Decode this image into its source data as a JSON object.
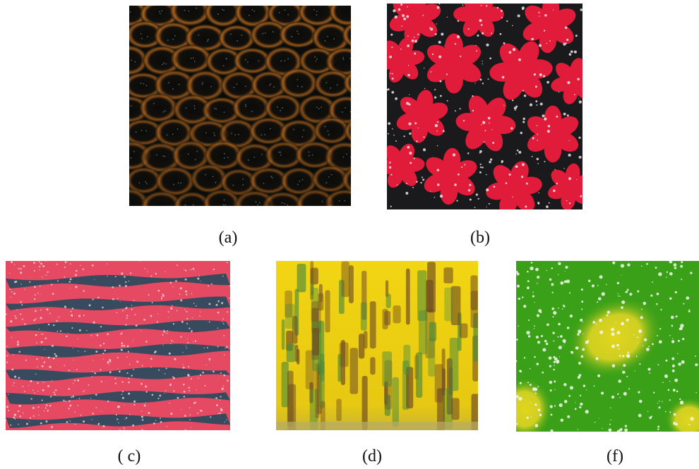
{
  "figure": {
    "captions": {
      "a": "(a)",
      "b": "(b)",
      "c": "( c)",
      "d": "(d)",
      "f": "(f)"
    },
    "colors": {
      "background": "#ffffff",
      "panel_a_base": "#0b0c0a",
      "panel_a_ring": "#b5651d",
      "panel_b_base": "#1a1a1c",
      "panel_b_flower": "#e11b3a",
      "panel_c_pink": "#e64a63",
      "panel_c_stripe": "#2e4b5e",
      "panel_d_yellow": "#f2d513",
      "panel_d_brown": "#6d4a22",
      "panel_f_green": "#3aa018",
      "panel_f_yellow": "#d9d21d"
    }
  }
}
